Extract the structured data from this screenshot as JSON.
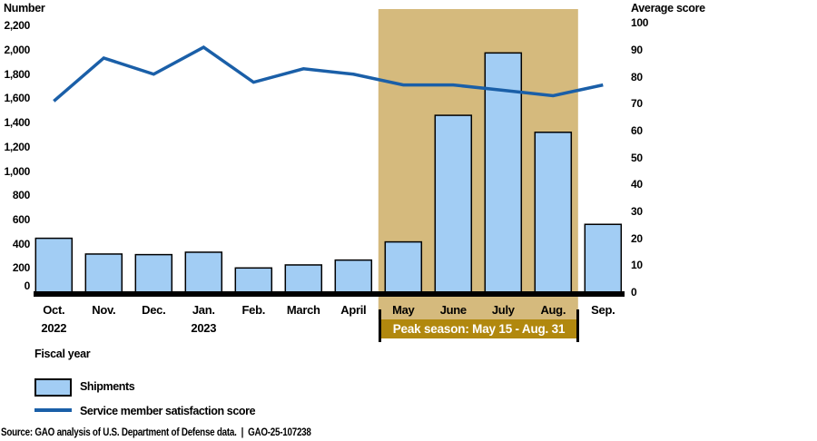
{
  "legend": {
    "bar_label": "Shipments",
    "line_label": "Service member satisfaction score"
  },
  "source_line": "Source: GAO analysis of U.S. Department of Defense data.  |  GAO-25-107238",
  "colors": {
    "bar_fill": "#a2cdf4",
    "bar_stroke": "#000000",
    "line": "#1a5fa8",
    "region": "#d5ba7d",
    "region_label_bg": "#b1880e",
    "region_label_text": "#ffffff",
    "axis": "#000000",
    "text": "#000000"
  },
  "chart_data": {
    "type": "bar+line",
    "categories": [
      "Oct.",
      "Nov.",
      "Dec.",
      "Jan.",
      "Feb.",
      "March",
      "April",
      "May",
      "June",
      "July",
      "Aug.",
      "Sep."
    ],
    "year_labels": [
      "2022",
      "",
      "",
      "2023",
      "",
      "",
      "",
      "",
      "",
      "",
      "",
      ""
    ],
    "series": [
      {
        "name": "Shipments",
        "type": "bar",
        "axis": "left",
        "values": [
          445,
          315,
          310,
          330,
          200,
          225,
          265,
          415,
          1460,
          1975,
          1320,
          560
        ]
      },
      {
        "name": "Service member satisfaction score",
        "type": "line",
        "axis": "right",
        "values": [
          71,
          87,
          81,
          91,
          78,
          83,
          81,
          77,
          77,
          75,
          73,
          77
        ]
      }
    ],
    "left_axis": {
      "title": "Number",
      "min": 0,
      "max": 2200,
      "tick_step": 200,
      "ticks": [
        "0",
        "200",
        "400",
        "600",
        "800",
        "1,000",
        "1,200",
        "1,400",
        "1,600",
        "1,800",
        "2,000",
        "2,200"
      ]
    },
    "right_axis": {
      "title": "Average score",
      "min": 0,
      "max": 100,
      "tick_step": 10,
      "ticks": [
        "0",
        "10",
        "20",
        "30",
        "40",
        "50",
        "60",
        "70",
        "80",
        "90",
        "100"
      ]
    },
    "xlabel": "Fiscal year",
    "grid": false,
    "legend_position": "bottom-left",
    "highlight_region": {
      "label": "Peak season: May 15 - Aug. 31",
      "from_category": "May",
      "to_category": "Aug."
    }
  }
}
